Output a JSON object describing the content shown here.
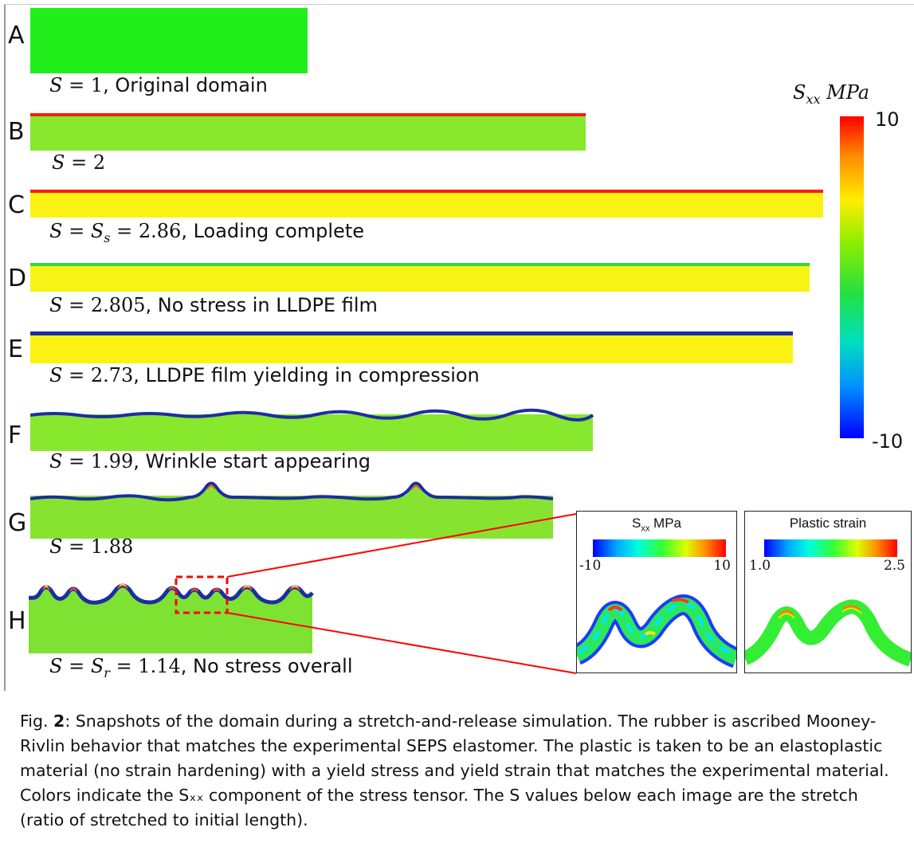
{
  "panels": [
    {
      "letter": "A",
      "label_math": "S = 1",
      "label_text": ", Original domain",
      "film": "none",
      "film_color": "",
      "body_color": "#22ee1c"
    },
    {
      "letter": "B",
      "label_math": "S = 2",
      "label_text": "",
      "film": "flat",
      "film_color": "#ff1a10",
      "body_color": "#88e82e"
    },
    {
      "letter": "C",
      "label_math": "S = S_s = 2.86",
      "label_text": ", Loading complete",
      "film": "flat",
      "film_color": "#ff1a10",
      "body_color": "#fbf214"
    },
    {
      "letter": "D",
      "label_math": "S = 2.805",
      "label_text": ", No stress in LLDPE film",
      "film": "flat",
      "film_color": "#33d83a",
      "body_color": "#f8f316"
    },
    {
      "letter": "E",
      "label_math": "S = 2.73",
      "label_text": ", LLDPE film yielding in compression",
      "film": "flat",
      "film_color": "#1e2aa8",
      "body_color": "#fbf214"
    },
    {
      "letter": "F",
      "label_math": "S = 1.99",
      "label_text": ", Wrinkle start appearing",
      "film": "wavy",
      "film_color": "#1c2ea0",
      "body_color": "#88e82e"
    },
    {
      "letter": "G",
      "label_math": "S = 1.88",
      "label_text": "",
      "film": "wrinkles",
      "film_color": "#1c2ea0",
      "body_color": "#86e430"
    },
    {
      "letter": "H",
      "label_math": "S = S_r = 1.14",
      "label_text": ", No stress overall",
      "film": "folds",
      "film_color": "#1c2ea0",
      "body_color": "#7ee232"
    }
  ],
  "colorbar": {
    "title_symbol": "S",
    "title_sub": "xx",
    "title_unit": "MPa",
    "max_label": "10",
    "min_label": "-10",
    "colors": [
      "#ff0000",
      "#ff8800",
      "#ffee00",
      "#88ee00",
      "#22e040",
      "#00e0c0",
      "#0090ff",
      "#0000ff"
    ]
  },
  "insets": [
    {
      "title": "S",
      "title_sub": "xx",
      "title_rest": " MPa",
      "min_label": "-10",
      "max_label": "10",
      "colors": [
        "#0000ff",
        "#00aaff",
        "#00ffdd",
        "#33ff33",
        "#ddff00",
        "#ff8800",
        "#ff0000"
      ]
    },
    {
      "title": "Plastic strain",
      "title_sub": "",
      "title_rest": "",
      "min_label": "1.0",
      "max_label": "2.5",
      "colors": [
        "#0000ff",
        "#00aaff",
        "#00ffdd",
        "#33ff33",
        "#ddff00",
        "#ff8800",
        "#ff0000"
      ]
    }
  ],
  "caption": {
    "fig_label": "Fig. ",
    "fig_number": "2",
    "text": ": Snapshots of the domain during a stretch-and-release simulation. The rubber is ascribed Mooney-Rivlin behavior that matches the experimental SEPS elastomer. The plastic is taken to be an elastoplastic material (no strain hardening) with a yield stress and yield strain that matches the experimental material. Colors indicate the Sₓₓ component of the stress tensor. The S values below each image are the stretch (ratio of stretched to initial length)."
  },
  "colors": {
    "callout": "#ff0000",
    "frame_line": "#999999"
  }
}
